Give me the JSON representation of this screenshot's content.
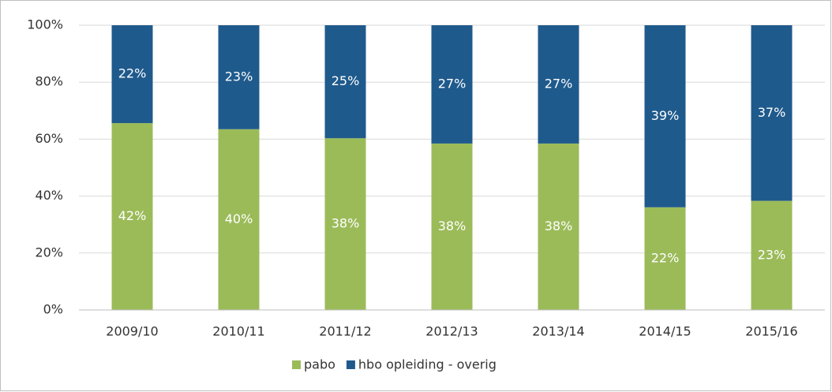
{
  "chart_data": {
    "type": "bar",
    "stacking": "percent",
    "categories": [
      "2009/10",
      "2010/11",
      "2011/12",
      "2012/13",
      "2013/14",
      "2014/15",
      "2015/16"
    ],
    "series": [
      {
        "name": "pabo",
        "color": "#9bbb59",
        "values": [
          42,
          40,
          38,
          38,
          38,
          22,
          23
        ],
        "value_labels": [
          "42%",
          "40%",
          "38%",
          "38%",
          "38%",
          "22%",
          "23%"
        ]
      },
      {
        "name": "hbo opleiding - overig",
        "color": "#1f5a8c",
        "values": [
          22,
          23,
          25,
          27,
          27,
          39,
          37
        ],
        "value_labels": [
          "22%",
          "23%",
          "25%",
          "27%",
          "27%",
          "39%",
          "37%"
        ]
      }
    ],
    "ylim": [
      0,
      100
    ],
    "yticks": [
      {
        "value": 0,
        "label": "0%"
      },
      {
        "value": 20,
        "label": "20%"
      },
      {
        "value": 40,
        "label": "40%"
      },
      {
        "value": 60,
        "label": "60%"
      },
      {
        "value": 80,
        "label": "80%"
      },
      {
        "value": 100,
        "label": "100%"
      }
    ],
    "grid": true,
    "legend": "bottom"
  }
}
